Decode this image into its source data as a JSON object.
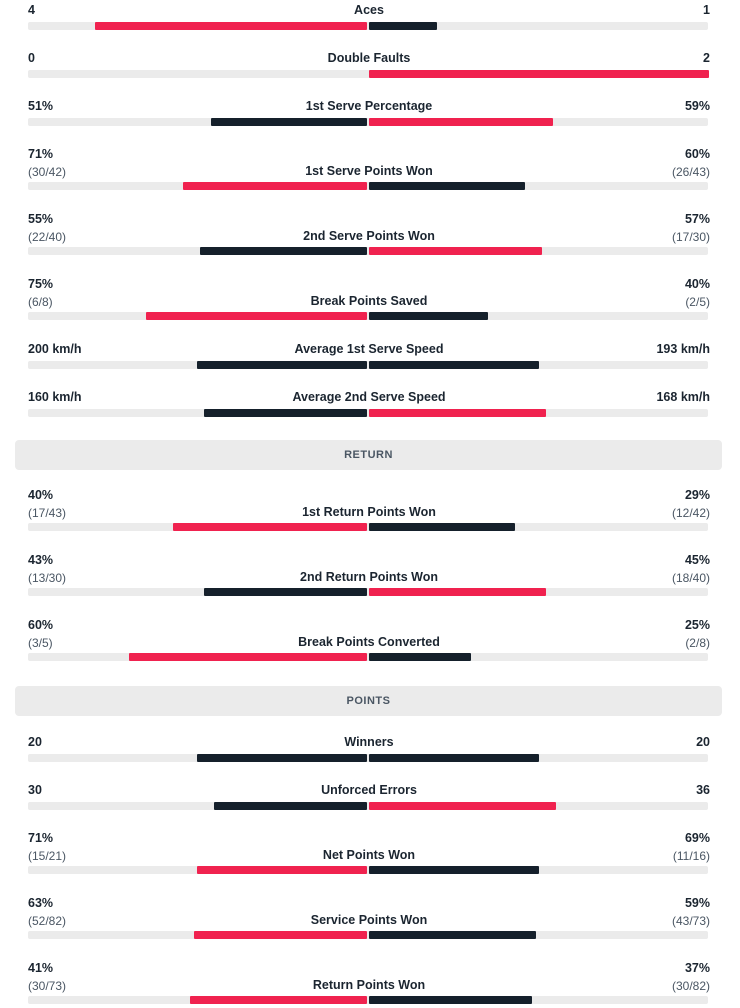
{
  "colors": {
    "player1": "#f0224f",
    "player2": "#15202b",
    "track": "#ebebeb",
    "section_bg": "#ebebeb"
  },
  "rows": [
    {
      "type": "stat",
      "label": "Aces",
      "left": "4",
      "right": "1",
      "left_ratio": 0.8,
      "right_ratio": 0.2
    },
    {
      "type": "stat",
      "label": "Double Faults",
      "left": "0",
      "right": "2",
      "left_ratio": 0.0,
      "right_ratio": 1.0
    },
    {
      "type": "stat",
      "label": "1st Serve Percentage",
      "left": "51%",
      "right": "59%",
      "left_ratio": 0.46,
      "right_ratio": 0.54
    },
    {
      "type": "stat",
      "label": "1st Serve Points Won",
      "left": "71%",
      "left_sub": "(30/42)",
      "right": "60%",
      "right_sub": "(26/43)",
      "left_ratio": 0.54,
      "right_ratio": 0.46
    },
    {
      "type": "stat",
      "label": "2nd Serve Points Won",
      "left": "55%",
      "left_sub": "(22/40)",
      "right": "57%",
      "right_sub": "(17/30)",
      "left_ratio": 0.49,
      "right_ratio": 0.51
    },
    {
      "type": "stat",
      "label": "Break Points Saved",
      "left": "75%",
      "left_sub": "(6/8)",
      "right": "40%",
      "right_sub": "(2/5)",
      "left_ratio": 0.65,
      "right_ratio": 0.35
    },
    {
      "type": "stat",
      "label": "Average 1st Serve Speed",
      "left": "200 km/h",
      "right": "193 km/h",
      "left_ratio": 0.5,
      "right_ratio": 0.5
    },
    {
      "type": "stat",
      "label": "Average 2nd Serve Speed",
      "left": "160 km/h",
      "right": "168 km/h",
      "left_ratio": 0.48,
      "right_ratio": 0.52
    },
    {
      "type": "section",
      "label": "RETURN"
    },
    {
      "type": "stat",
      "label": "1st Return Points Won",
      "left": "40%",
      "left_sub": "(17/43)",
      "right": "29%",
      "right_sub": "(12/42)",
      "left_ratio": 0.57,
      "right_ratio": 0.43
    },
    {
      "type": "stat",
      "label": "2nd Return Points Won",
      "left": "43%",
      "left_sub": "(13/30)",
      "right": "45%",
      "right_sub": "(18/40)",
      "left_ratio": 0.48,
      "right_ratio": 0.52
    },
    {
      "type": "stat",
      "label": "Break Points Converted",
      "left": "60%",
      "left_sub": "(3/5)",
      "right": "25%",
      "right_sub": "(2/8)",
      "left_ratio": 0.7,
      "right_ratio": 0.3
    },
    {
      "type": "section",
      "label": "POINTS"
    },
    {
      "type": "stat",
      "label": "Winners",
      "left": "20",
      "right": "20",
      "left_ratio": 0.5,
      "right_ratio": 0.5
    },
    {
      "type": "stat",
      "label": "Unforced Errors",
      "left": "30",
      "right": "36",
      "left_ratio": 0.45,
      "right_ratio": 0.55
    },
    {
      "type": "stat",
      "label": "Net Points Won",
      "left": "71%",
      "left_sub": "(15/21)",
      "right": "69%",
      "right_sub": "(11/16)",
      "left_ratio": 0.5,
      "right_ratio": 0.5
    },
    {
      "type": "stat",
      "label": "Service Points Won",
      "left": "63%",
      "left_sub": "(52/82)",
      "right": "59%",
      "right_sub": "(43/73)",
      "left_ratio": 0.51,
      "right_ratio": 0.49
    },
    {
      "type": "stat",
      "label": "Return Points Won",
      "left": "41%",
      "left_sub": "(30/73)",
      "right": "37%",
      "right_sub": "(30/82)",
      "left_ratio": 0.52,
      "right_ratio": 0.48
    }
  ]
}
